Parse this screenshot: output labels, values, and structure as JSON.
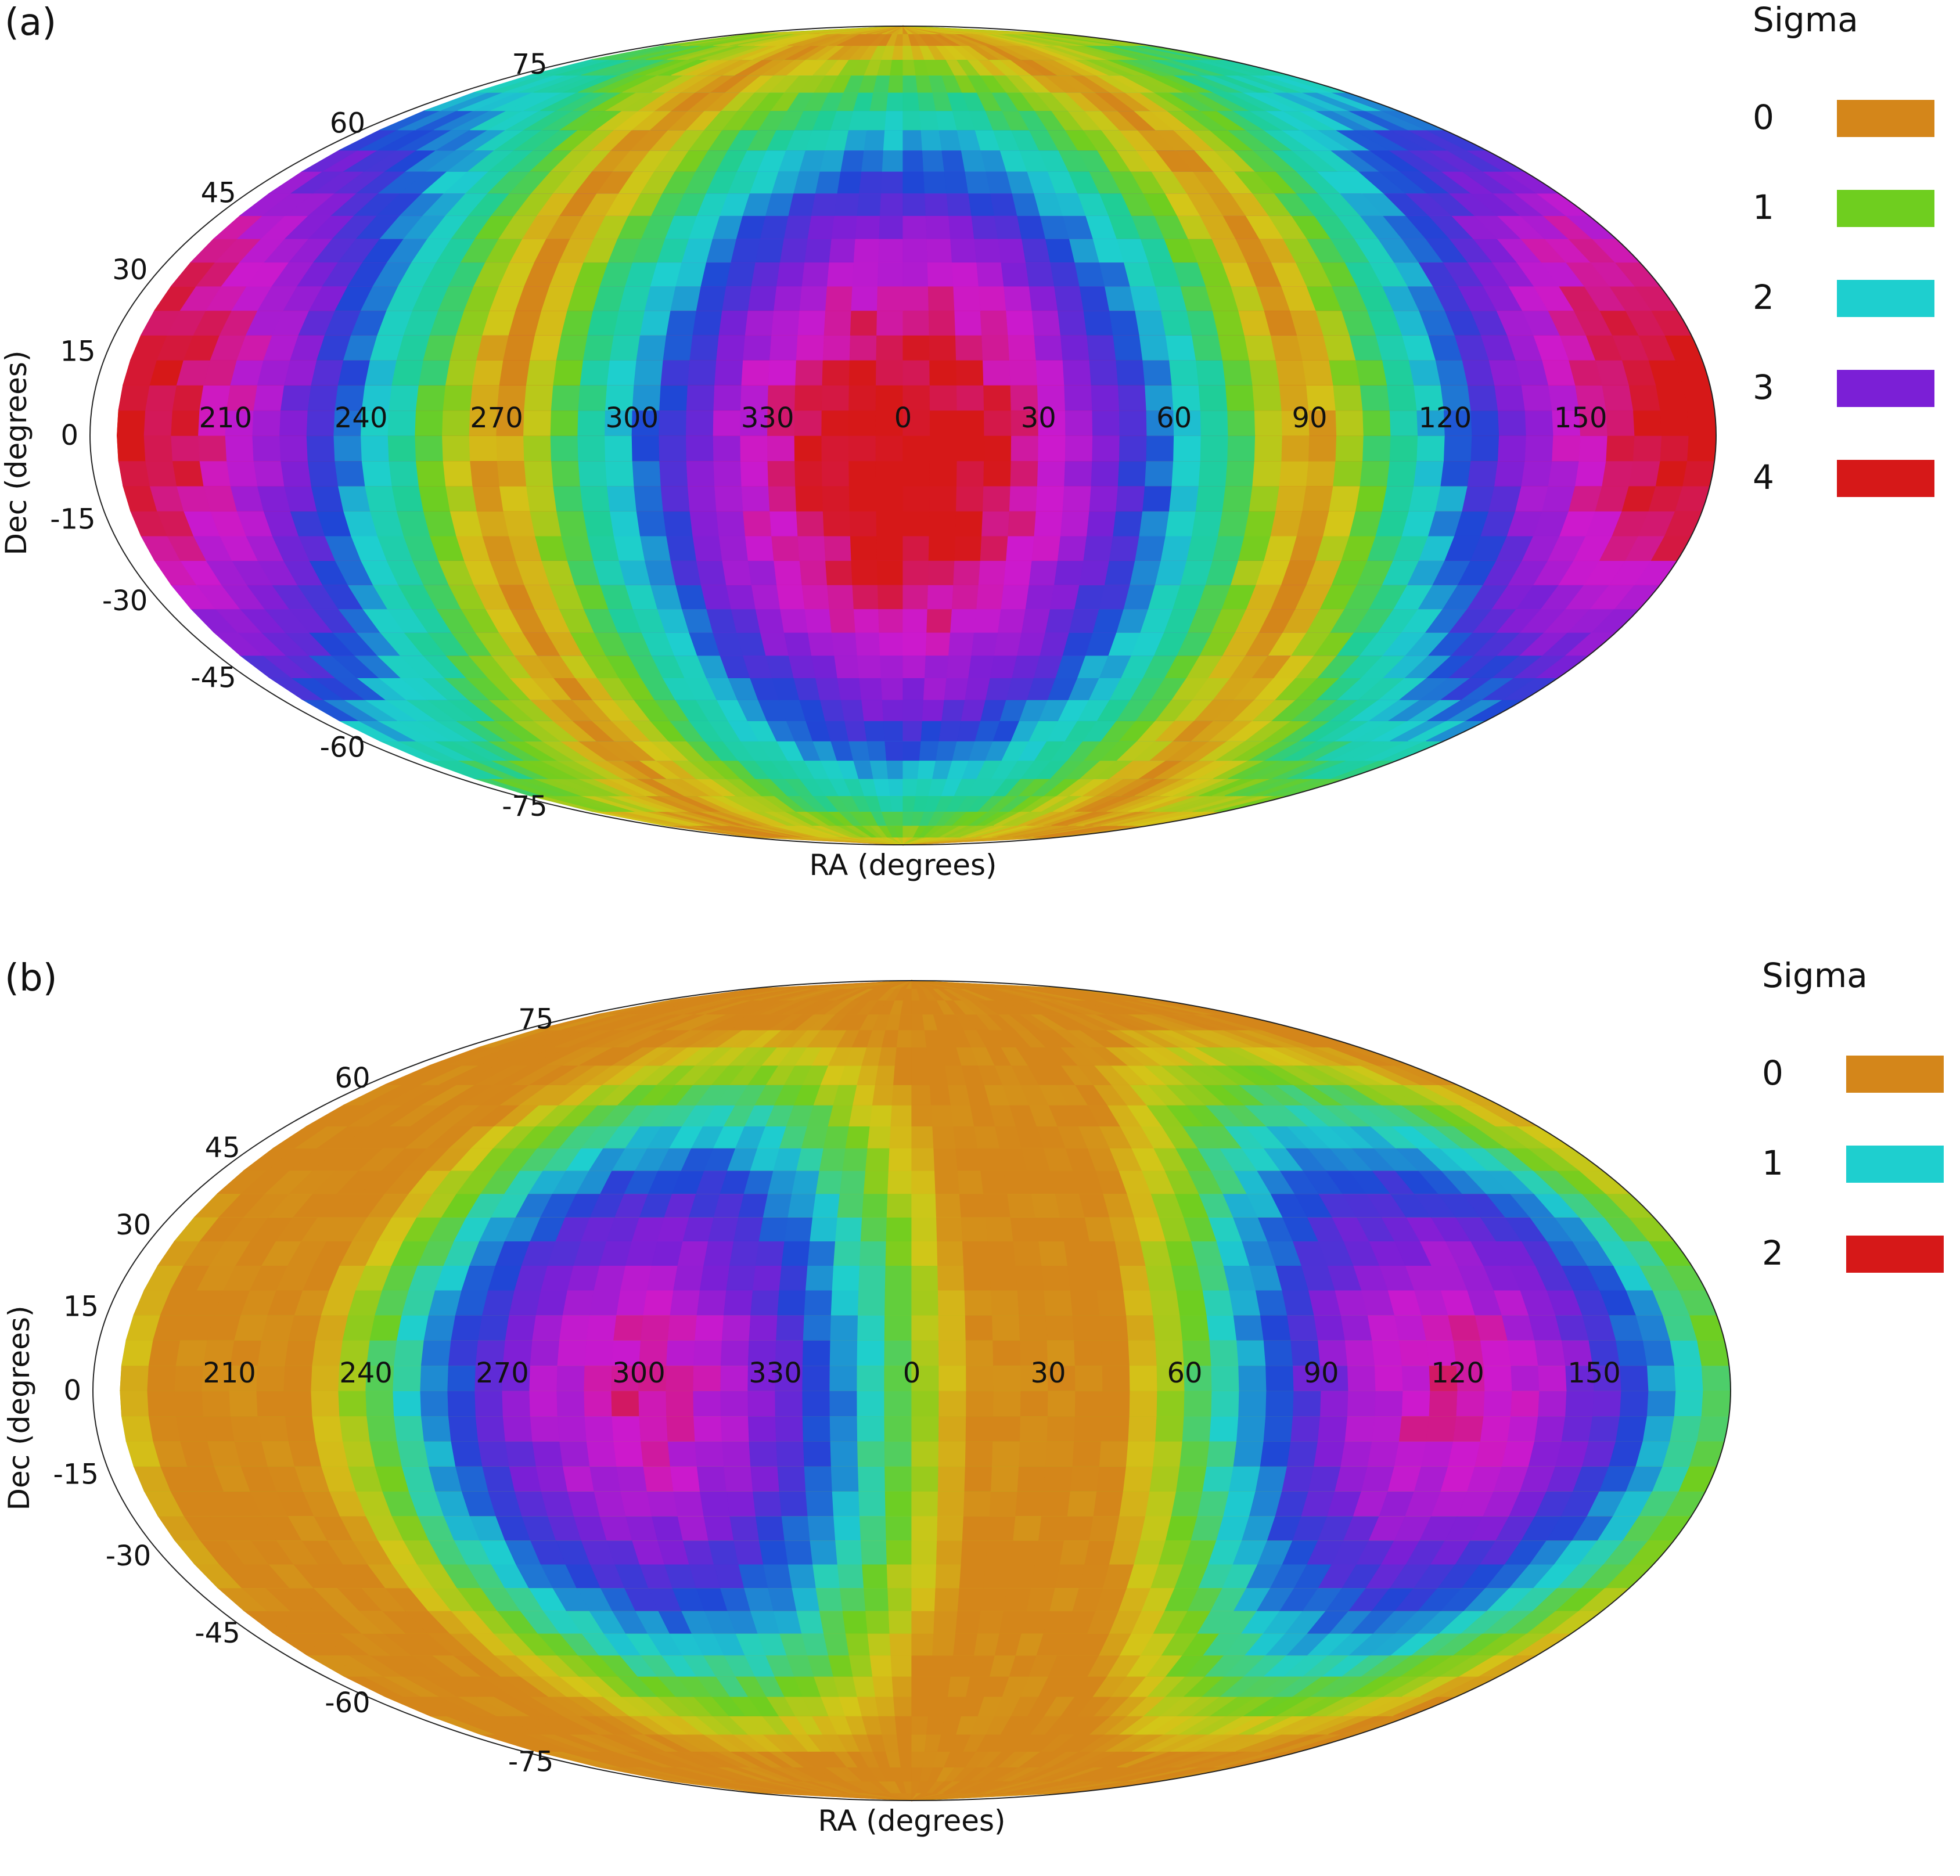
{
  "chart_data": [
    {
      "type": "heatmap",
      "panel_label": "(a)",
      "xlabel": "RA (degrees)",
      "ylabel": "Dec (degrees)",
      "projection": "mollweide",
      "ra_ticks": [
        "210",
        "240",
        "270",
        "300",
        "330",
        "0",
        "30",
        "60",
        "90",
        "120",
        "150"
      ],
      "dec_ticks": [
        "75",
        "60",
        "45",
        "30",
        "15",
        "0",
        "-15",
        "-30",
        "-45",
        "-60",
        "-75"
      ],
      "legend": {
        "title": "Sigma",
        "entries": [
          {
            "label": "0",
            "color": "#d4861a"
          },
          {
            "label": "1",
            "color": "#6fce1f"
          },
          {
            "label": "2",
            "color": "#1ecfcf"
          },
          {
            "label": "3",
            "color": "#7b1fd6"
          },
          {
            "label": "4",
            "color": "#d61818"
          }
        ]
      },
      "sigma_range": [
        0,
        4
      ],
      "field": {
        "peak_ra": 0,
        "peak_dec": -5,
        "peak_sigma": 4.1,
        "min_sigma": 0,
        "min_angle_deg": 90
      }
    },
    {
      "type": "heatmap",
      "panel_label": "(b)",
      "xlabel": "RA (degrees)",
      "ylabel": "Dec (degrees)",
      "projection": "mollweide",
      "ra_ticks": [
        "210",
        "240",
        "270",
        "300",
        "330",
        "0",
        "30",
        "60",
        "90",
        "120",
        "150"
      ],
      "dec_ticks": [
        "75",
        "60",
        "45",
        "30",
        "15",
        "0",
        "-15",
        "-30",
        "-45",
        "-60",
        "-75"
      ],
      "legend": {
        "title": "Sigma",
        "entries": [
          {
            "label": "0",
            "color": "#d4861a"
          },
          {
            "label": "1",
            "color": "#1ecfcf"
          },
          {
            "label": "2",
            "color": "#d61818"
          }
        ]
      },
      "sigma_range": [
        0,
        2
      ],
      "field": {
        "peak_ra": 120,
        "peak_dec": 0,
        "peak_sigma": 1.85,
        "min_sigma": 0,
        "min_angle_deg": 75
      }
    }
  ]
}
